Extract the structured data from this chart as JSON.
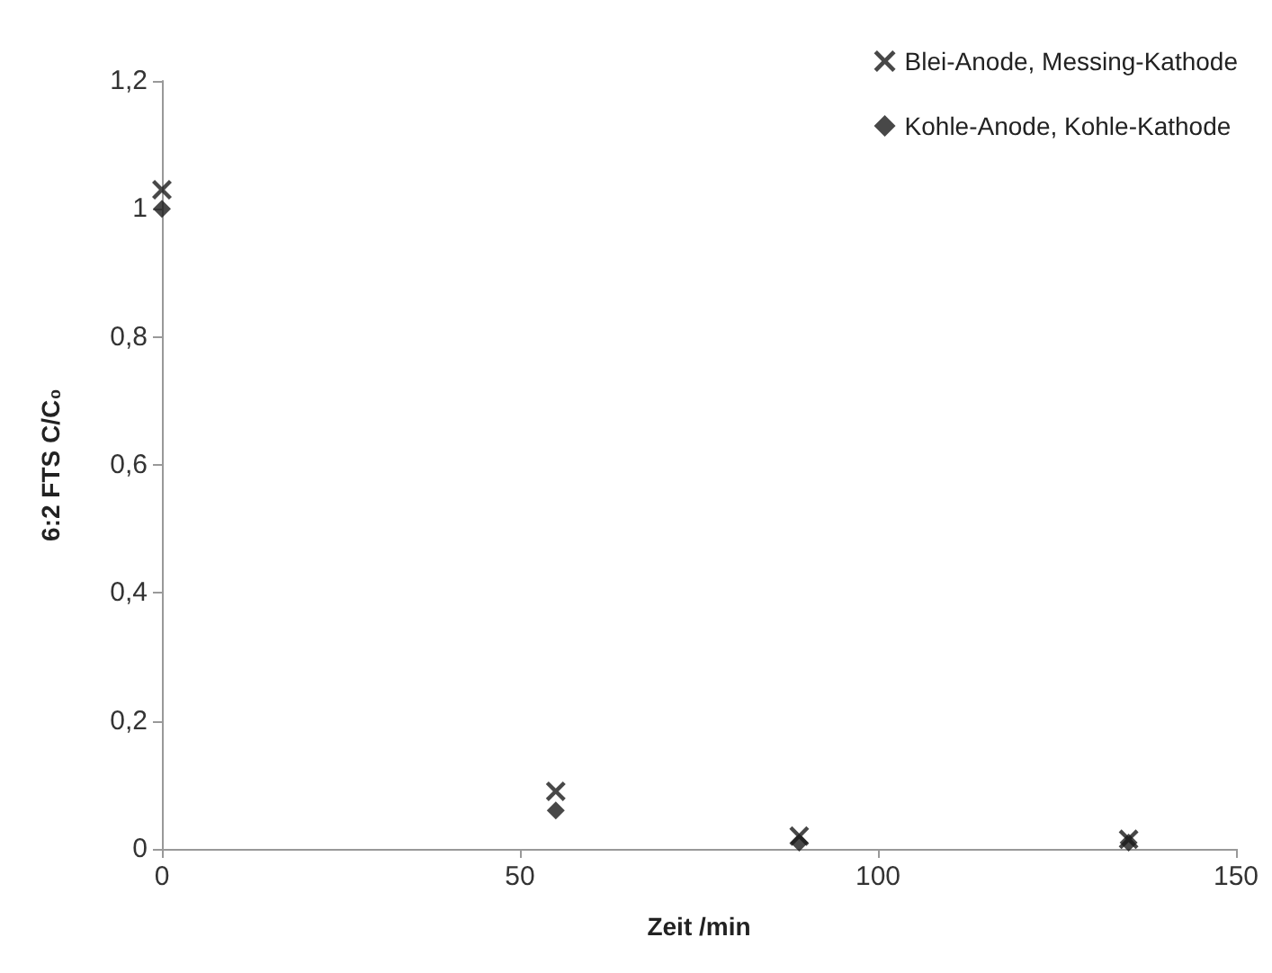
{
  "chart_data": {
    "type": "scatter",
    "xlabel": "Zeit /min",
    "ylabel": "6:2 FTS C/C₀",
    "series": [
      {
        "name": "Blei-Anode, Messing-Kathode",
        "color": "#1a1a1a",
        "marker": "cross",
        "x": [
          0,
          55,
          89,
          135
        ],
        "values": [
          1.03,
          0.09,
          0.02,
          0.015
        ]
      },
      {
        "name": "Kohle-Anode, Kohle-Kathode",
        "color": "#1a1a1a",
        "marker": "diamond",
        "x": [
          0,
          55,
          89,
          135
        ],
        "values": [
          1.0,
          0.06,
          0.01,
          0.01
        ]
      }
    ],
    "xlim": [
      0,
      150
    ],
    "xticks": [
      0,
      50,
      100,
      150
    ],
    "ylim": [
      0,
      1.2
    ],
    "yticks": [
      0,
      {
        "value": 0.2,
        "label": "0,2"
      },
      {
        "value": 0.4,
        "label": "0,4"
      },
      {
        "value": 0.6,
        "label": "0,6"
      },
      {
        "value": 0.8,
        "label": "0,8"
      },
      1,
      {
        "value": 1.2,
        "label": "1,2"
      }
    ],
    "grid": false,
    "legend": "top right"
  }
}
